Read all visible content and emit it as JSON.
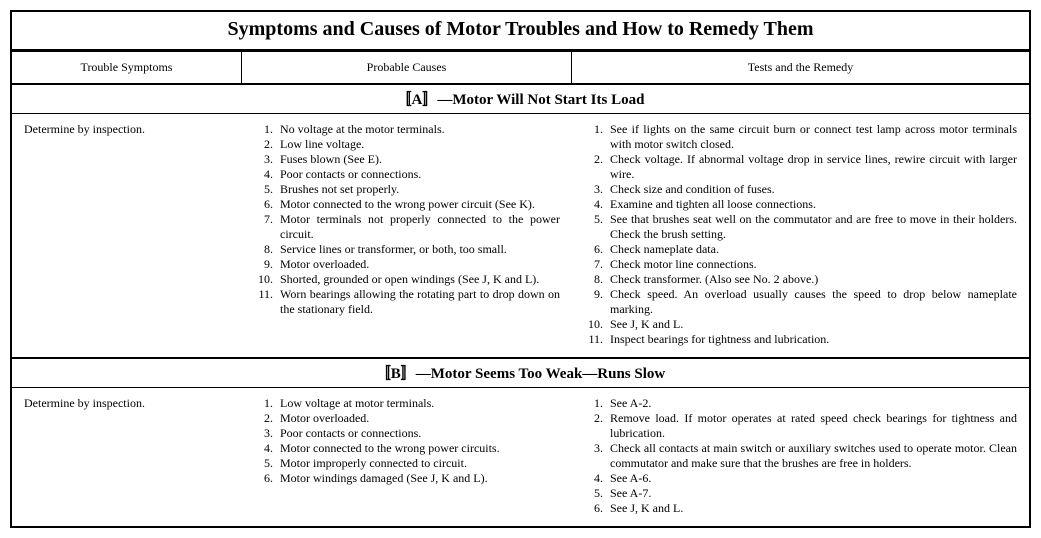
{
  "title": "Symptoms and Causes of Motor Troubles and How to Remedy Them",
  "headers": {
    "col1": "Trouble Symptoms",
    "col2": "Probable Causes",
    "col3": "Tests and the Remedy"
  },
  "sections": [
    {
      "label": "〚A〛—Motor Will Not Start Its Load",
      "symptom": "Determine by inspection.",
      "causes": [
        "No voltage at the motor terminals.",
        "Low line voltage.",
        "Fuses blown (See E).",
        "Poor contacts or connections.",
        "Brushes not set properly.",
        "Motor connected to the wrong power circuit (See K).",
        "Motor terminals not properly connected to the power circuit.",
        "Service lines or transformer, or both, too small.",
        "Motor overloaded.",
        "Shorted, grounded or open windings (See J, K and L).",
        "Worn bearings allowing the rotating part to drop down on the stationary field."
      ],
      "remedies": [
        "See if lights on the same circuit burn or connect test lamp across motor terminals with motor switch closed.",
        "Check voltage. If abnormal voltage drop in service lines, rewire circuit with larger wire.",
        "Check size and condition of fuses.",
        "Examine and tighten all loose connections.",
        "See that brushes seat well on the commutator and are free to move in their holders. Check the brush setting.",
        "Check nameplate data.",
        "Check motor line connections.",
        "Check transformer. (Also see No. 2 above.)",
        "Check speed. An overload usually causes the speed to drop below nameplate marking.",
        "See J, K and L.",
        "Inspect bearings for tightness and lubrication."
      ]
    },
    {
      "label": "〚B〛—Motor Seems Too Weak—Runs Slow",
      "symptom": "Determine by inspection.",
      "causes": [
        "Low voltage at motor terminals.",
        "Motor overloaded.",
        "Poor contacts or connections.",
        "Motor connected to the wrong power circuits.",
        "Motor improperly connected to circuit.",
        "Motor windings damaged (See J, K and L)."
      ],
      "remedies": [
        "See A-2.",
        "Remove load. If motor operates at rated speed check bearings for tightness and lubrication.",
        "Check all contacts at main switch or auxiliary switches used to operate motor. Clean commutator and make sure that the brushes are free in holders.",
        "See A-6.",
        "See A-7.",
        "See J, K and L."
      ]
    }
  ]
}
